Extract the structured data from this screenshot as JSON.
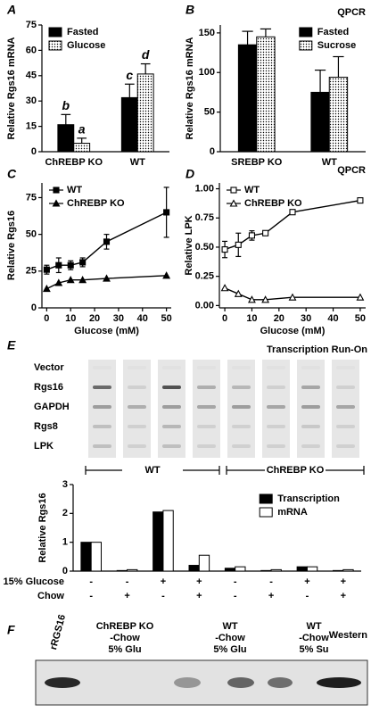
{
  "chart_data": [
    {
      "type": "bar",
      "label": "A",
      "y_label": "Relative Rgs16 mRNA",
      "categories": [
        "ChREBP KO",
        "WT"
      ],
      "series": [
        {
          "name": "Fasted",
          "color": "#000000",
          "values": [
            16,
            32
          ],
          "errors": [
            6,
            8
          ],
          "significance": [
            "b",
            "c"
          ]
        },
        {
          "name": "Glucose",
          "color": "#ffffff",
          "pattern": "dots",
          "values": [
            5,
            46
          ],
          "errors": [
            3,
            6
          ],
          "significance": [
            "a",
            "d"
          ]
        }
      ],
      "ylim": [
        0,
        75
      ],
      "yticks": [
        0,
        15,
        30,
        45,
        60,
        75
      ],
      "legend": "upper left"
    },
    {
      "type": "bar",
      "label": "B",
      "annotation": "QPCR",
      "y_label": "Relative Rgs16 mRNA",
      "categories": [
        "SREBP KO",
        "WT"
      ],
      "series": [
        {
          "name": "Fasted",
          "color": "#000000",
          "values": [
            135,
            75
          ],
          "errors": [
            17,
            28
          ]
        },
        {
          "name": "Sucrose",
          "color": "#ffffff",
          "pattern": "dots",
          "values": [
            145,
            94
          ],
          "errors": [
            10,
            26
          ]
        }
      ],
      "ylim": [
        0,
        160
      ],
      "yticks": [
        0,
        50,
        100,
        150
      ],
      "legend": "upper right"
    },
    {
      "type": "line",
      "label": "C",
      "y_label": "Relative Rgs16",
      "x_label": "Glucose (mM)",
      "x": [
        0,
        5,
        10,
        15,
        25,
        50
      ],
      "series": [
        {
          "name": "WT",
          "color": "#000000",
          "marker": "square",
          "marker_fill": "#000000",
          "values": [
            26,
            29,
            29,
            31,
            45,
            65
          ],
          "errors": [
            3,
            5,
            3,
            3,
            5,
            17
          ]
        },
        {
          "name": "ChREBP KO",
          "color": "#000000",
          "marker": "triangle",
          "marker_fill": "#000000",
          "values": [
            13,
            17,
            19,
            19,
            20,
            22
          ]
        }
      ],
      "xlim": [
        -2,
        52
      ],
      "xticks": [
        0,
        10,
        20,
        30,
        40,
        50
      ],
      "ylim": [
        0,
        85
      ],
      "yticks": [
        0,
        25,
        50,
        75
      ],
      "legend": "upper left"
    },
    {
      "type": "line",
      "label": "D",
      "annotation": "QPCR",
      "y_label": "Relative LPK",
      "x_label": "Glucose (mM)",
      "x": [
        0,
        5,
        10,
        15,
        25,
        50
      ],
      "series": [
        {
          "name": "WT",
          "color": "#000000",
          "marker": "square",
          "marker_fill": "#ffffff",
          "values": [
            0.48,
            0.52,
            0.6,
            0.62,
            0.8,
            0.9
          ],
          "errors": [
            0.07,
            0.1,
            0.04,
            0.02,
            0.02,
            0.02
          ]
        },
        {
          "name": "ChREBP KO",
          "color": "#000000",
          "marker": "triangle",
          "marker_fill": "#ffffff",
          "values": [
            0.15,
            0.1,
            0.05,
            0.05,
            0.07,
            0.07
          ]
        }
      ],
      "xlim": [
        -2,
        52
      ],
      "xticks": [
        0,
        10,
        20,
        30,
        40,
        50
      ],
      "ylim": [
        -0.02,
        1.05
      ],
      "yticks": [
        {
          "value": 0,
          "label": "0.00"
        },
        {
          "value": 0.25,
          "label": "0.25"
        },
        {
          "value": 0.5,
          "label": "0.50"
        },
        {
          "value": 0.75,
          "label": "0.75"
        },
        {
          "value": 1,
          "label": "1.00"
        }
      ],
      "legend": "upper left"
    },
    {
      "type": "bar",
      "label": "E",
      "y_label": "Relative Rgs16",
      "categories": [
        null,
        null,
        null,
        null,
        null,
        null,
        null,
        null
      ],
      "series": [
        {
          "name": "Transcription",
          "color": "#000000",
          "values": [
            1.0,
            0.02,
            2.05,
            0.2,
            0.1,
            0.02,
            0.15,
            0.02
          ]
        },
        {
          "name": "mRNA",
          "color": "#ffffff",
          "values": [
            1.0,
            0.05,
            2.1,
            0.55,
            0.15,
            0.05,
            0.15,
            0.05
          ]
        }
      ],
      "ylim": [
        0,
        3
      ],
      "yticks": [
        0,
        1,
        2,
        3
      ],
      "legend": "upper right",
      "x_rows": [
        {
          "label": "15% Glucose",
          "values": [
            "-",
            "-",
            "+",
            "+",
            "-",
            "-",
            "+",
            "+"
          ]
        },
        {
          "label": "Chow",
          "values": [
            "-",
            "+",
            "-",
            "+",
            "-",
            "+",
            "-",
            "+"
          ]
        }
      ],
      "blot": {
        "title": "Transcription Run-On",
        "rows": [
          "Vector",
          "Rgs16",
          "GAPDH",
          "Rgs8",
          "LPK"
        ],
        "groups": [
          "WT",
          "ChREBP KO"
        ]
      }
    }
  ],
  "western": {
    "label": "F",
    "title": "Western",
    "lanes": [
      [
        "rRGS16"
      ],
      [
        "ChREBP KO",
        "-Chow",
        "5% Glu"
      ],
      [
        "WT",
        "-Chow",
        "5% Glu"
      ],
      [
        "WT",
        "-Chow",
        "5% Su"
      ]
    ]
  }
}
